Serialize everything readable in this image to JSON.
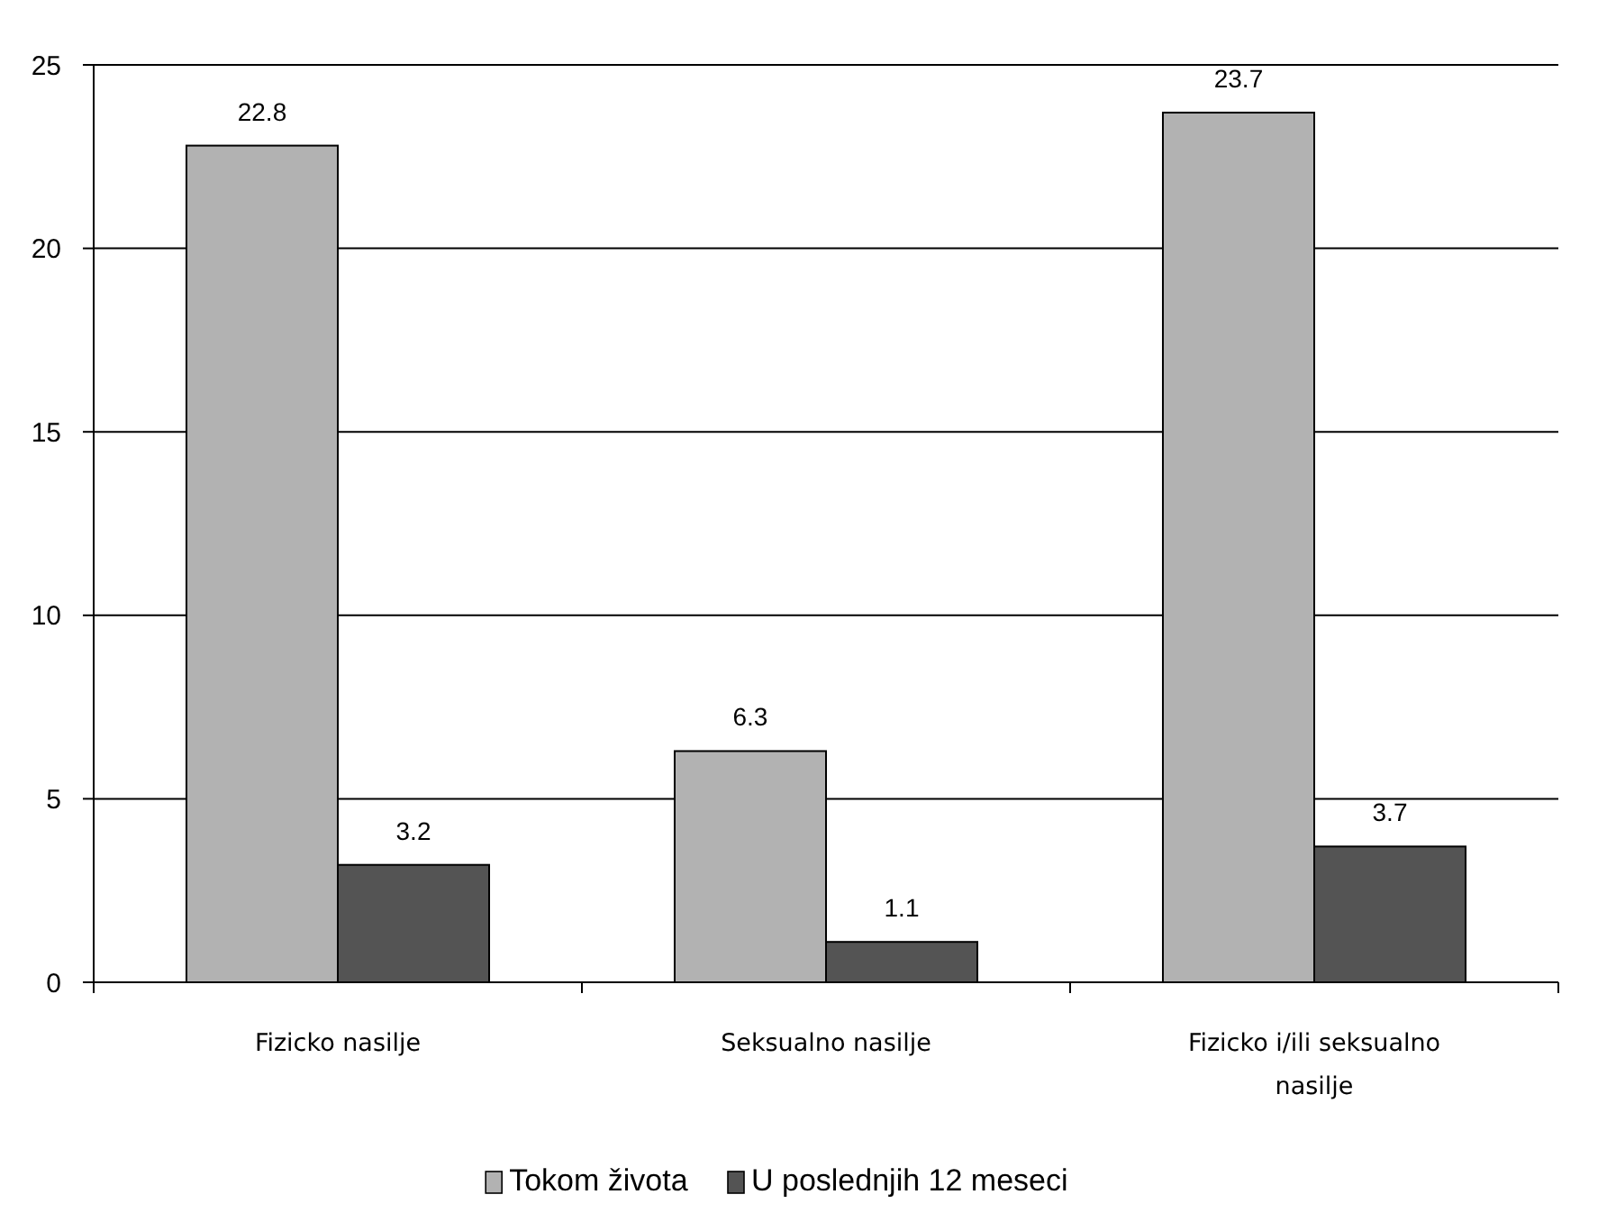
{
  "chart_data": {
    "type": "bar",
    "categories": [
      "Fizicko nasilje",
      "Seksualno nasilje",
      "Fizicko i/ili seksualno nasilje"
    ],
    "series": [
      {
        "name": "Tokom života",
        "color": "#b2b2b2",
        "values": [
          22.8,
          6.3,
          23.7
        ]
      },
      {
        "name": "U poslednjih 12 meseci",
        "color": "#545454",
        "values": [
          3.2,
          1.1,
          3.7
        ]
      }
    ],
    "ylim": [
      0,
      25
    ],
    "yticks": [
      0,
      5,
      10,
      15,
      20,
      25
    ],
    "grid": "y",
    "legend": "bottom",
    "data_labels": true
  }
}
